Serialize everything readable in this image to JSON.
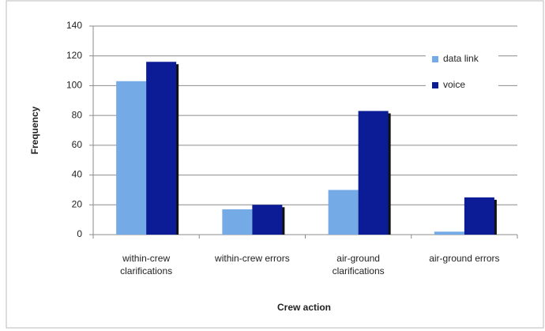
{
  "chart_data": {
    "type": "bar",
    "categories": [
      "within-crew clarifications",
      "within-crew errors",
      "air-ground clarifications",
      "air-ground errors"
    ],
    "series": [
      {
        "name": "data link",
        "color": "#74abe6",
        "values": [
          103,
          17,
          30,
          2
        ]
      },
      {
        "name": "voice",
        "color": "#0b1c96",
        "values": [
          116,
          20,
          83,
          25
        ]
      }
    ],
    "ylim": [
      0,
      140
    ],
    "yticks": [
      0,
      20,
      40,
      60,
      80,
      100,
      120,
      140
    ],
    "y_label": "Frequency",
    "x_label": "Crew action",
    "grid": true,
    "legend": "upper right"
  }
}
